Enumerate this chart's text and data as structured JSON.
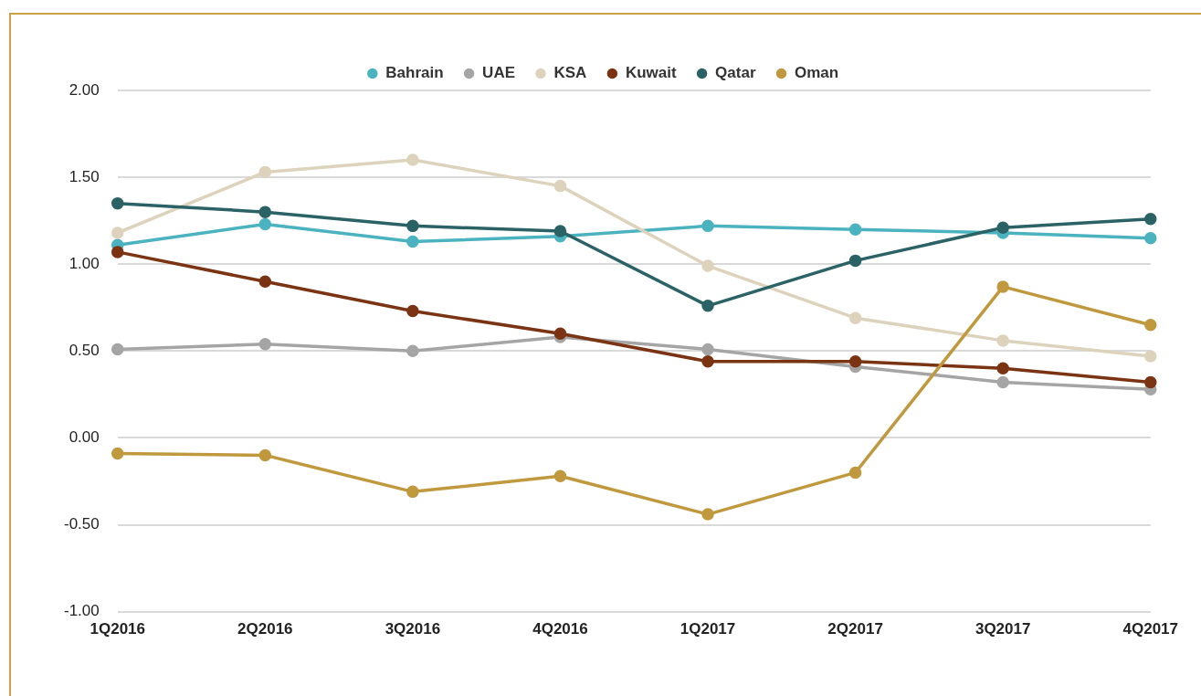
{
  "chart_data": {
    "type": "line",
    "categories": [
      "1Q2016",
      "2Q2016",
      "3Q2016",
      "4Q2016",
      "1Q2017",
      "2Q2017",
      "3Q2017",
      "4Q2017"
    ],
    "series": [
      {
        "name": "Bahrain",
        "color": "#4bb3c0",
        "values": [
          1.11,
          1.23,
          1.13,
          1.16,
          1.22,
          1.2,
          1.18,
          1.15
        ]
      },
      {
        "name": "UAE",
        "color": "#a5a5a5",
        "values": [
          0.51,
          0.54,
          0.5,
          0.58,
          0.51,
          0.41,
          0.32,
          0.28
        ]
      },
      {
        "name": "KSA",
        "color": "#ddd3bd",
        "values": [
          1.18,
          1.53,
          1.6,
          1.45,
          0.99,
          0.69,
          0.56,
          0.47
        ]
      },
      {
        "name": "Kuwait",
        "color": "#7b3413",
        "values": [
          1.07,
          0.9,
          0.73,
          0.6,
          0.44,
          0.44,
          0.4,
          0.32
        ]
      },
      {
        "name": "Qatar",
        "color": "#2b6265",
        "values": [
          1.35,
          1.3,
          1.22,
          1.19,
          0.76,
          1.02,
          1.21,
          1.26
        ]
      },
      {
        "name": "Oman",
        "color": "#c0993f",
        "values": [
          -0.09,
          -0.1,
          -0.31,
          -0.22,
          -0.44,
          -0.2,
          0.87,
          0.65
        ]
      }
    ],
    "ylim": [
      -1,
      2
    ],
    "yticks": [
      {
        "value": -1,
        "label": "-1.00"
      },
      {
        "value": -0.5,
        "label": "-0.50"
      },
      {
        "value": 0,
        "label": "0.00"
      },
      {
        "value": 0.5,
        "label": "0.50"
      },
      {
        "value": 1,
        "label": "1.00"
      },
      {
        "value": 1.5,
        "label": "1.50"
      },
      {
        "value": 2,
        "label": "2.00"
      }
    ],
    "grid": "y",
    "legend": "top",
    "marker": "circle",
    "line_style": "solid"
  }
}
